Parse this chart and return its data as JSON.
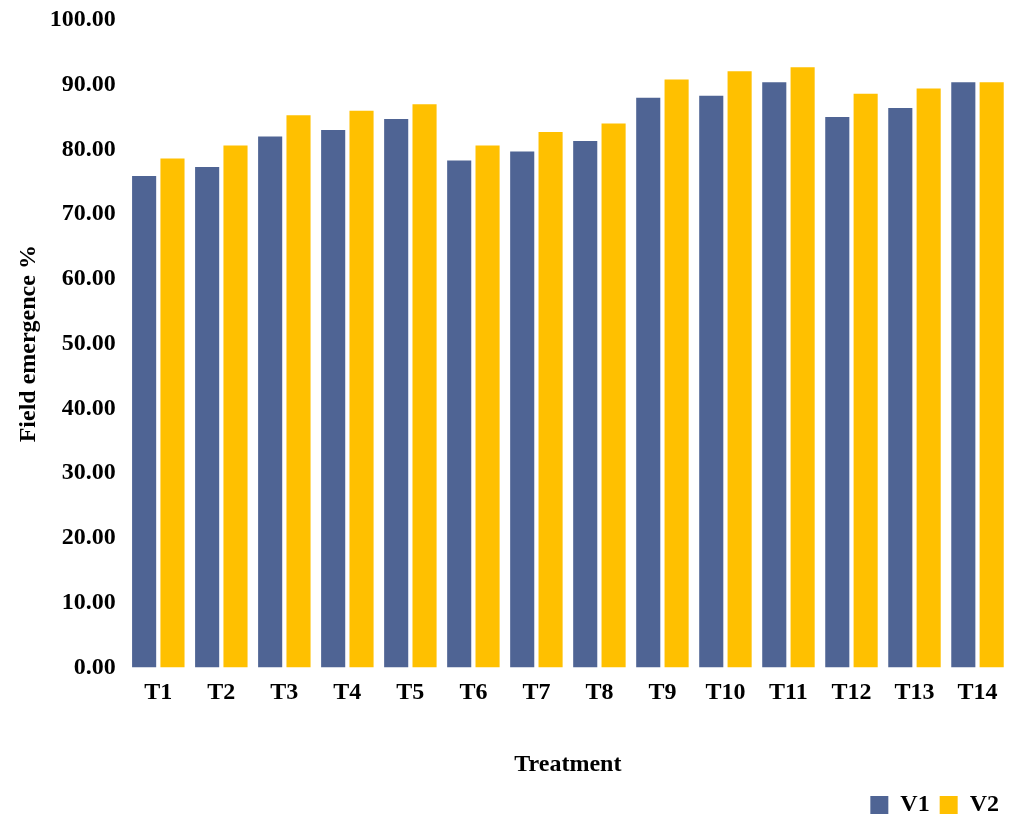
{
  "chart_data": {
    "type": "bar",
    "xlabel": "Treatment",
    "ylabel": "Field emergence %",
    "categories": [
      "T1",
      "T2",
      "T3",
      "T4",
      "T5",
      "T6",
      "T7",
      "T8",
      "T9",
      "T10",
      "T11",
      "T12",
      "T13",
      "T14"
    ],
    "series": [
      {
        "name": "V1",
        "color": "#4f6494",
        "values": [
          75.9,
          77.3,
          82.0,
          83.0,
          84.7,
          78.3,
          79.7,
          81.3,
          88.0,
          88.3,
          90.4,
          85.0,
          86.4,
          90.4
        ]
      },
      {
        "name": "V2",
        "color": "#ffc000",
        "values": [
          78.6,
          80.6,
          85.3,
          86.0,
          87.0,
          80.6,
          82.7,
          84.0,
          90.8,
          92.1,
          92.7,
          88.6,
          89.4,
          90.4
        ]
      }
    ],
    "ylim": [
      0,
      100
    ],
    "yticks": [
      {
        "value": 0,
        "label": "0.00"
      },
      {
        "value": 10,
        "label": "10.00"
      },
      {
        "value": 20,
        "label": "20.00"
      },
      {
        "value": 30,
        "label": "30.00"
      },
      {
        "value": 40,
        "label": "40.00"
      },
      {
        "value": 50,
        "label": "50.00"
      },
      {
        "value": 60,
        "label": "60.00"
      },
      {
        "value": 70,
        "label": "70.00"
      },
      {
        "value": 80,
        "label": "80.00"
      },
      {
        "value": 90,
        "label": "90.00"
      },
      {
        "value": 100,
        "label": "100.00"
      }
    ],
    "grid": false,
    "legend": "bottom right"
  }
}
